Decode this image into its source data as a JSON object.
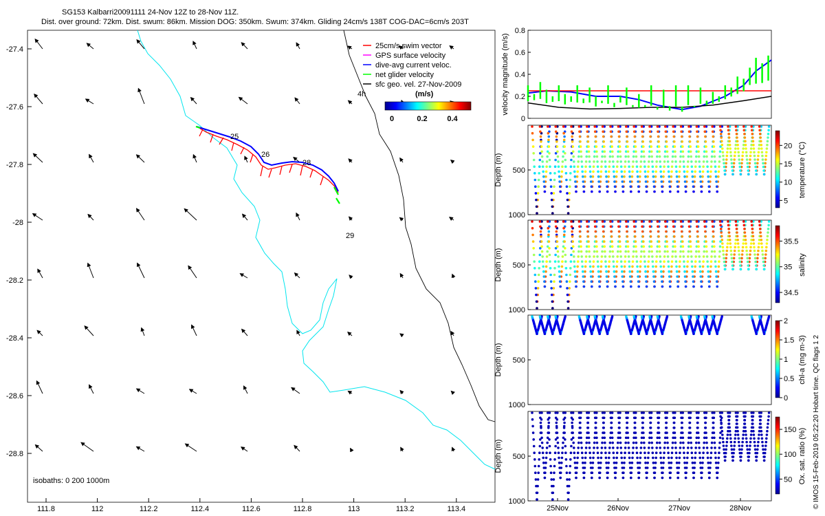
{
  "title_line1": "SG153 Kalbarri20091111 24-Nov 12Z to 28-Nov 11Z.",
  "title_line2": "Dist. over ground: 72km. Dist. swum: 86km. Mission DOG: 350km. Swum: 374km. Gliding 24cm/s 138T COG-DAC=6cm/s 203T",
  "copyright": "© IMOS 15-Feb-2019 05:22:20 Hobart time. QC flags 1  2",
  "colors": {
    "swim": "#ff0000",
    "gps": "#ff00ff",
    "dac": "#0000ff",
    "net": "#00ff00",
    "sfc": "#000000",
    "coast": "#00e5ee",
    "isobath": "#000000",
    "ref_line": "#ff0000"
  },
  "map": {
    "legend": [
      {
        "label": "25cm/s swim vector",
        "color": "#ff0000"
      },
      {
        "label": "GPS surface velocity",
        "color": "#ff00ff"
      },
      {
        "label": "dive-avg current veloc.",
        "color": "#0000ff"
      },
      {
        "label": "net glider velocity",
        "color": "#00ff00"
      },
      {
        "label": "sfc geo. vel. 27-Nov-2009",
        "color": "#000000"
      }
    ],
    "colorbar_unit": "(m/s)",
    "colorbar_ticks": [
      "0",
      "0.2",
      "0.4"
    ],
    "isobath_note": "isobaths: 0   200  1000m",
    "contour_label": "4h",
    "day_labels": [
      "25",
      "26",
      "28",
      "29"
    ],
    "xticks": [
      "111.8",
      "112",
      "112.2",
      "112.4",
      "112.6",
      "112.8",
      "113",
      "113.2",
      "113.4"
    ],
    "yticks": [
      "-27.4",
      "-27.6",
      "-27.8",
      "-28",
      "-28.2",
      "-28.4",
      "-28.6",
      "-28.8"
    ]
  },
  "chart_data": [
    {
      "type": "line",
      "name": "velocity_magnitude",
      "ylabel": "velocity magnitude (m/s)",
      "ylim": [
        0,
        0.8
      ],
      "yticks": [
        "0",
        "0.2",
        "0.4",
        "0.6",
        "0.8"
      ],
      "xlim": [
        24.5,
        28.45
      ],
      "series": [
        {
          "color": "#0000ff",
          "x": [
            24.5,
            24.8,
            25.2,
            25.6,
            26.0,
            26.3,
            26.6,
            27.0,
            27.3,
            27.7,
            28.0,
            28.2,
            28.45
          ],
          "y": [
            0.23,
            0.25,
            0.24,
            0.2,
            0.2,
            0.17,
            0.12,
            0.08,
            0.11,
            0.2,
            0.3,
            0.43,
            0.53
          ]
        },
        {
          "color": "#000000",
          "x": [
            24.5,
            25.0,
            25.5,
            26.0,
            26.5,
            27.0,
            27.5,
            28.0,
            28.45
          ],
          "y": [
            0.14,
            0.1,
            0.085,
            0.09,
            0.1,
            0.1,
            0.12,
            0.16,
            0.2
          ]
        },
        {
          "color": "#ff0000",
          "x": [
            24.5,
            28.45
          ],
          "y": [
            0.25,
            0.25
          ]
        },
        {
          "color": "#00ff00",
          "x": [
            24.5,
            24.6,
            24.7,
            24.8,
            24.9,
            25.0,
            25.1,
            25.2,
            25.3,
            25.4,
            25.5,
            25.6,
            25.7,
            25.8,
            25.9,
            26.0,
            26.1,
            26.2,
            26.3,
            26.4,
            26.5,
            26.6,
            26.7,
            26.8,
            26.9,
            27.0,
            27.1,
            27.2,
            27.3,
            27.4,
            27.5,
            27.6,
            27.7,
            27.8,
            27.9,
            28.0,
            28.1,
            28.2,
            28.3,
            28.4
          ],
          "y": [
            0.3,
            0.22,
            0.33,
            0.26,
            0.2,
            0.3,
            0.22,
            0.2,
            0.3,
            0.18,
            0.28,
            0.2,
            0.16,
            0.3,
            0.14,
            0.2,
            0.28,
            0.12,
            0.22,
            0.1,
            0.3,
            0.08,
            0.26,
            0.07,
            0.3,
            0.06,
            0.3,
            0.1,
            0.28,
            0.16,
            0.24,
            0.2,
            0.3,
            0.28,
            0.38,
            0.36,
            0.46,
            0.55,
            0.5,
            0.57
          ]
        }
      ]
    },
    {
      "type": "scatter",
      "name": "temperature",
      "ylabel": "Depth (m)",
      "yticks": [
        "500",
        "1000"
      ],
      "ylim": [
        1000,
        0
      ],
      "colorbar_label": "temperature (°C)",
      "colorbar_ticks": [
        "5",
        "10",
        "15",
        "20"
      ],
      "colorbar_range": [
        3,
        24
      ]
    },
    {
      "type": "scatter",
      "name": "salinity",
      "ylabel": "Depth (m)",
      "yticks": [
        "500",
        "1000"
      ],
      "ylim": [
        1000,
        0
      ],
      "colorbar_label": "salinity",
      "colorbar_ticks": [
        "34.5",
        "35",
        "35.5"
      ],
      "colorbar_range": [
        34.3,
        35.8
      ]
    },
    {
      "type": "scatter",
      "name": "chl_a",
      "ylabel": "Depth (m)",
      "yticks": [
        "500",
        "1000"
      ],
      "ylim": [
        1000,
        0
      ],
      "colorbar_label": "chl-a (mg m-3)",
      "colorbar_ticks": [
        "0",
        "0.5",
        "1",
        "1.5",
        "2"
      ],
      "colorbar_range": [
        0,
        2
      ]
    },
    {
      "type": "scatter",
      "name": "oxygen",
      "ylabel": "Depth (m)",
      "yticks": [
        "500",
        "1000"
      ],
      "ylim": [
        1000,
        0
      ],
      "xticks": [
        "25Nov",
        "26Nov",
        "27Nov",
        "28Nov"
      ],
      "colorbar_label": "Ox. sat. ratio (%)",
      "colorbar_ticks": [
        "50",
        "100",
        "150"
      ],
      "colorbar_range": [
        20,
        175
      ]
    }
  ]
}
